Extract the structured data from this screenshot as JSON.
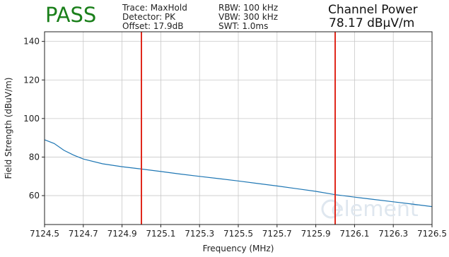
{
  "header": {
    "status": "PASS",
    "status_color": "#1a7f1a",
    "trace": "Trace: MaxHold",
    "detector": "Detector: PK",
    "offset": "Offset: 17.9dB",
    "rbw": "RBW: 100 kHz",
    "vbw": "VBW: 300 kHz",
    "swt": "SWT: 1.0ms",
    "channel_power_label": "Channel Power",
    "channel_power_value": "78.17 dBµV/m"
  },
  "watermark": {
    "text": "element",
    "color": "#dfe7ef"
  },
  "chart_data": {
    "type": "line",
    "xlabel": "Frequency (MHz)",
    "ylabel": "Field Strength (dBuV/m)",
    "xlim": [
      7124.5,
      7126.5
    ],
    "ylim": [
      45,
      145
    ],
    "xticks": [
      7124.5,
      7124.7,
      7124.9,
      7125.1,
      7125.3,
      7125.5,
      7125.7,
      7125.9,
      7126.1,
      7126.3,
      7126.5
    ],
    "xtick_labels": [
      "7124.5",
      "7124.7",
      "7124.9",
      "7125.1",
      "7125.3",
      "7125.5",
      "7125.7",
      "7125.9",
      "7126.1",
      "7126.3",
      "7126.5"
    ],
    "yticks": [
      60,
      80,
      100,
      120,
      140
    ],
    "ytick_labels": [
      "60",
      "80",
      "100",
      "120",
      "140"
    ],
    "grid": true,
    "series": [
      {
        "color": "#1f77b4",
        "x": [
          7124.5,
          7124.55,
          7124.6,
          7124.65,
          7124.7,
          7124.8,
          7124.9,
          7125.0,
          7125.1,
          7125.2,
          7125.3,
          7125.4,
          7125.5,
          7125.6,
          7125.7,
          7125.8,
          7125.9,
          7126.0,
          7126.1,
          7126.2,
          7126.3,
          7126.4,
          7126.5
        ],
        "y": [
          89,
          87,
          83.5,
          81,
          79,
          76.5,
          75,
          73.8,
          72.5,
          71.2,
          70,
          68.8,
          67.6,
          66.3,
          65,
          63.6,
          62.2,
          60.5,
          59.2,
          58,
          56.8,
          55.6,
          54.3
        ]
      }
    ],
    "vlines": [
      {
        "x": 7125.0,
        "color": "#e0281c"
      },
      {
        "x": 7126.0,
        "color": "#e0281c"
      }
    ]
  }
}
